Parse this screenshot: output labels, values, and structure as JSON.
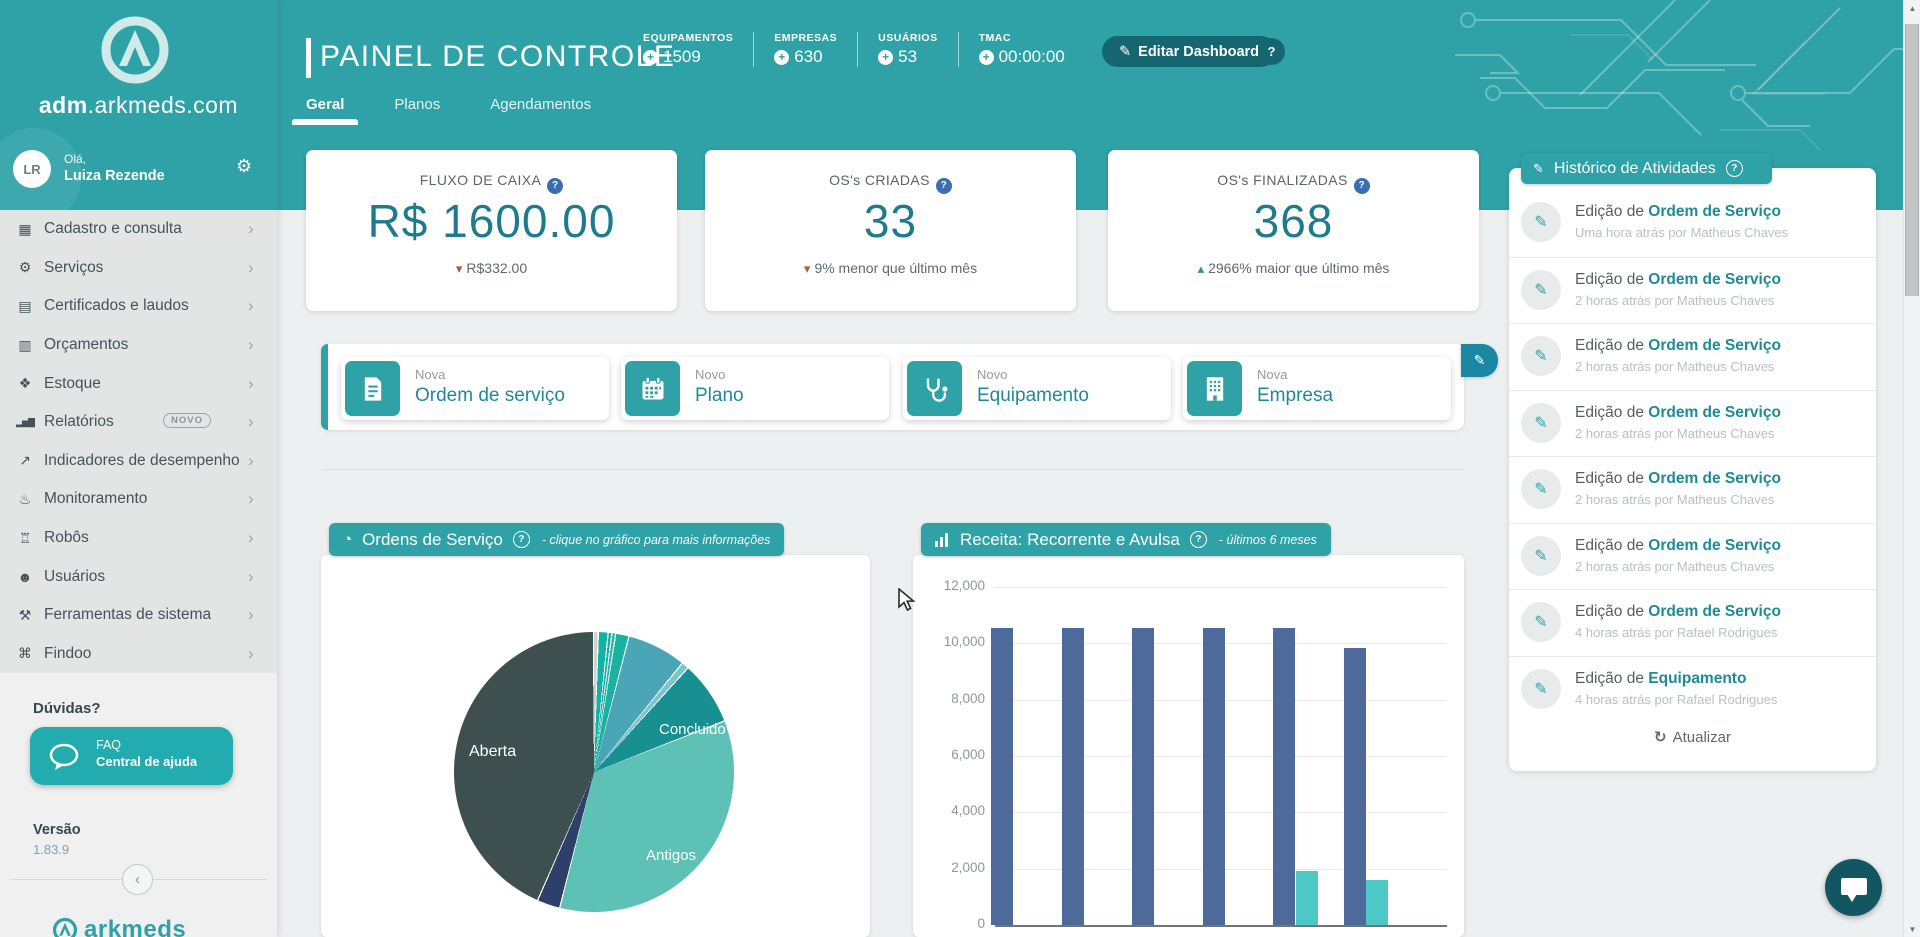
{
  "brand": {
    "bold": "adm",
    "rest": ".arkmeds.com"
  },
  "sidebar": {
    "greeting": "Olá,",
    "user_name": "Luiza Rezende",
    "user_initials": "LR",
    "menu": [
      {
        "label": "Cadastro e consulta",
        "icon": "table-icon"
      },
      {
        "label": "Serviços",
        "icon": "gear-icon"
      },
      {
        "label": "Certificados e laudos",
        "icon": "document-icon"
      },
      {
        "label": "Orçamentos",
        "icon": "list-icon"
      },
      {
        "label": "Estoque",
        "icon": "boxes-icon"
      },
      {
        "label": "Relatórios",
        "icon": "bar-chart-icon",
        "badge": "NOVO"
      },
      {
        "label": "Indicadores de desempenho",
        "icon": "line-chart-icon"
      },
      {
        "label": "Monitoramento",
        "icon": "thermometer-icon"
      },
      {
        "label": "Robôs",
        "icon": "robot-icon"
      },
      {
        "label": "Usuários",
        "icon": "user-icon"
      },
      {
        "label": "Ferramentas de sistema",
        "icon": "wrench-icon"
      },
      {
        "label": "Findoo",
        "icon": "network-icon"
      }
    ],
    "help_heading": "Dúvidas?",
    "faq_label": "FAQ",
    "faq_sub": "Central de ajuda",
    "version_label": "Versão",
    "version_value": "1.83.9",
    "footer_logo_text": "arkmeds"
  },
  "header": {
    "title": "PAINEL DE CONTROLE",
    "stats": [
      {
        "label": "EQUIPAMENTOS",
        "value": "1509"
      },
      {
        "label": "EMPRESAS",
        "value": "630"
      },
      {
        "label": "USUÁRIOS",
        "value": "53"
      },
      {
        "label": "TMAC",
        "value": "00:00:00"
      }
    ],
    "edit_button": "Editar Dashboard",
    "help_button": "?",
    "tabs": [
      {
        "label": "Geral",
        "active": true
      },
      {
        "label": "Planos",
        "active": false
      },
      {
        "label": "Agendamentos",
        "active": false
      }
    ]
  },
  "summary_cards": [
    {
      "title": "FLUXO DE CAIXA",
      "value": "R$ 1600.00",
      "delta": "R$332.00",
      "direction": "down"
    },
    {
      "title": "OS's CRIADAS",
      "value": "33",
      "delta": "9% menor que último mês",
      "direction": "down"
    },
    {
      "title": "OS's FINALIZADAS",
      "value": "368",
      "delta": "2966% maior que último mês",
      "direction": "up"
    }
  ],
  "quick_actions": {
    "items": [
      {
        "prefix": "Nova",
        "label": "Ordem de serviço",
        "icon": "document-icon"
      },
      {
        "prefix": "Novo",
        "label": "Plano",
        "icon": "calendar-icon"
      },
      {
        "prefix": "Novo",
        "label": "Equipamento",
        "icon": "stethoscope-icon"
      },
      {
        "prefix": "Nova",
        "label": "Empresa",
        "icon": "building-icon"
      }
    ]
  },
  "chart_data": [
    {
      "type": "pie",
      "title": "Ordens de Serviço",
      "subtitle": "- clique no gráfico para mais informações",
      "slices": [
        {
          "label": "",
          "color": "#cdd2d4",
          "angle_deg": 1.5
        },
        {
          "label": "",
          "color": "#14b1a5",
          "angle_deg": 3.5
        },
        {
          "label": "",
          "color": "#14b1a5",
          "angle_deg": 1
        },
        {
          "label": "",
          "color": "#2bb3ab",
          "angle_deg": 1
        },
        {
          "label": "",
          "color": "#17b2a0",
          "angle_deg": 5
        },
        {
          "label": "",
          "color": "#4aa5b7",
          "angle_deg": 24
        },
        {
          "label": "",
          "color": "#7cc4cd",
          "angle_deg": 2.5
        },
        {
          "label": "Concluido",
          "color": "#188f90",
          "angle_deg": 26
        },
        {
          "label": "Antigos",
          "color": "#5ec1b6",
          "angle_deg": 125
        },
        {
          "label": "",
          "color": "#2e3f69",
          "angle_deg": 9
        },
        {
          "label": "Aberta",
          "color": "#3d4f4e",
          "angle_deg": 155.5
        }
      ]
    },
    {
      "type": "bar",
      "title": "Receita: Recorrente e Avulsa",
      "subtitle": "- últimos 6 meses",
      "categories": [
        "",
        "",
        "",
        "",
        "",
        ""
      ],
      "series": [
        {
          "name": "Recorrente",
          "color": "#4d6a9a",
          "values": [
            10550,
            10550,
            10550,
            10550,
            10550,
            9830
          ]
        },
        {
          "name": "Avulsa",
          "color": "#4cc8c6",
          "values": [
            0,
            0,
            0,
            0,
            1900,
            1600
          ]
        }
      ],
      "ylim": [
        0,
        12000
      ],
      "yticks": [
        0,
        2000,
        4000,
        6000,
        8000,
        10000,
        12000
      ],
      "ytick_labels": [
        "0",
        "2,000",
        "4,000",
        "6,000",
        "8,000",
        "10,000",
        "12,000"
      ],
      "grid": true,
      "legend": "none"
    }
  ],
  "activity": {
    "title": "Histórico de Atividades",
    "items": [
      {
        "prefix": "Edição de",
        "name": "Ordem de Serviço",
        "meta": "Uma hora atrás por Matheus Chaves"
      },
      {
        "prefix": "Edição de",
        "name": "Ordem de Serviço",
        "meta": "2 horas atrás por Matheus Chaves"
      },
      {
        "prefix": "Edição de",
        "name": "Ordem de Serviço",
        "meta": "2 horas atrás por Matheus Chaves"
      },
      {
        "prefix": "Edição de",
        "name": "Ordem de Serviço",
        "meta": "2 horas atrás por Matheus Chaves"
      },
      {
        "prefix": "Edição de",
        "name": "Ordem de Serviço",
        "meta": "2 horas atrás por Matheus Chaves"
      },
      {
        "prefix": "Edição de",
        "name": "Ordem de Serviço",
        "meta": "2 horas atrás por Matheus Chaves"
      },
      {
        "prefix": "Edição de",
        "name": "Ordem de Serviço",
        "meta": "4 horas atrás por Rafael Rodrigues"
      },
      {
        "prefix": "Edição de",
        "name": "Equipamento",
        "meta": "4 horas atrás por Rafael Rodrigues"
      }
    ],
    "refresh_label": "Atualizar"
  }
}
